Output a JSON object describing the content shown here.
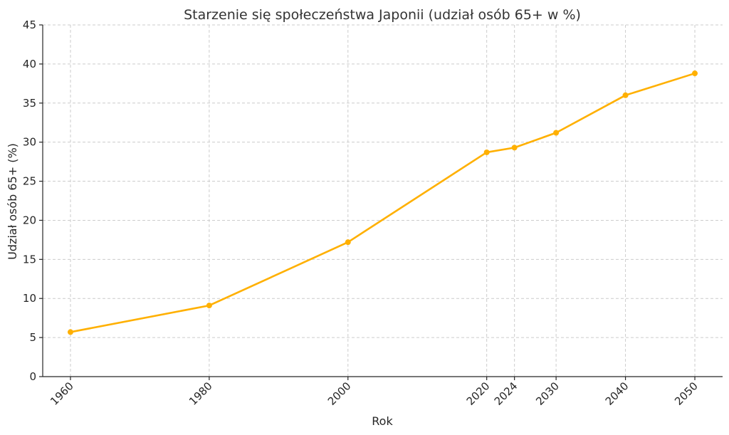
{
  "chart_data": {
    "type": "line",
    "title": "Starzenie się społeczeństwa Japonii (udział osób 65+ w %)",
    "xlabel": "Rok",
    "ylabel": "Udział osób 65+ (%)",
    "x": [
      1960,
      1980,
      2000,
      2020,
      2024,
      2030,
      2040,
      2050
    ],
    "x_tick_labels": [
      "1960",
      "1980",
      "2000",
      "2020",
      "2024",
      "2030",
      "2040",
      "2050"
    ],
    "y_ticks": [
      0,
      5,
      10,
      15,
      20,
      25,
      30,
      35,
      40,
      45
    ],
    "y_tick_labels": [
      "0",
      "5",
      "10",
      "15",
      "20",
      "25",
      "30",
      "35",
      "40",
      "45"
    ],
    "ylim": [
      0,
      45
    ],
    "xlim": [
      1956,
      2054
    ],
    "series": [
      {
        "values": [
          5.7,
          9.1,
          17.2,
          28.7,
          29.3,
          31.2,
          36.0,
          38.8
        ],
        "color": "#FFB000",
        "marker": "circle"
      }
    ],
    "grid": true,
    "legend": "none"
  }
}
